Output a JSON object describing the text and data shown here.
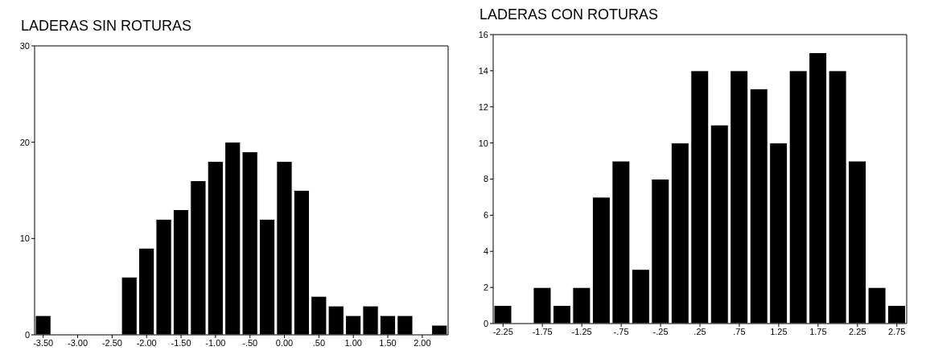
{
  "chart_data": [
    {
      "type": "histogram",
      "title": "LADERAS SIN ROTURAS",
      "color": "#000000",
      "bins": [
        -3.625,
        -3.375,
        -3.125,
        -2.875,
        -2.625,
        -2.375,
        -2.125,
        -1.875,
        -1.625,
        -1.375,
        -1.125,
        -0.875,
        -0.625,
        -0.375,
        -0.125,
        0.125,
        0.375,
        0.625,
        0.875,
        1.125,
        1.375,
        1.625,
        1.875,
        2.125,
        2.375
      ],
      "values": [
        2,
        0,
        0,
        0,
        0,
        6,
        9,
        12,
        13,
        16,
        18,
        20,
        19,
        12,
        18,
        15,
        4,
        3,
        2,
        3,
        2,
        2,
        0,
        1
      ],
      "xlim": [
        -3.625,
        2.375
      ],
      "xticks": [
        {
          "value": -3.5,
          "label": "-3.50"
        },
        {
          "value": -3,
          "label": "-3.00"
        },
        {
          "value": -2.5,
          "label": "-2.50"
        },
        {
          "value": -2,
          "label": "-2.00"
        },
        {
          "value": -1.5,
          "label": "-1.50"
        },
        {
          "value": -1,
          "label": "-1.00"
        },
        {
          "value": -0.5,
          "label": "-.50"
        },
        {
          "value": 0,
          "label": "0.00"
        },
        {
          "value": 0.5,
          "label": ".50"
        },
        {
          "value": 1,
          "label": "1.00"
        },
        {
          "value": 1.5,
          "label": "1.50"
        },
        {
          "value": 2,
          "label": "2.00"
        }
      ],
      "ylim": [
        0,
        30
      ],
      "yticks": [
        0,
        10,
        20,
        30
      ]
    },
    {
      "type": "histogram",
      "title": "LADERAS CON ROTURAS",
      "color": "#000000",
      "bins": [
        -2.375,
        -2.125,
        -1.875,
        -1.625,
        -1.375,
        -1.125,
        -0.875,
        -0.625,
        -0.375,
        -0.125,
        0.125,
        0.375,
        0.625,
        0.875,
        1.125,
        1.375,
        1.625,
        1.875,
        2.125,
        2.375,
        2.625,
        2.875
      ],
      "values": [
        1,
        0,
        2,
        1,
        2,
        7,
        9,
        3,
        8,
        10,
        14,
        11,
        14,
        13,
        10,
        14,
        15,
        14,
        9,
        2,
        1
      ],
      "xlim": [
        -2.375,
        2.875
      ],
      "xticks": [
        {
          "value": -2.25,
          "label": "-2.25"
        },
        {
          "value": -1.75,
          "label": "-1.75"
        },
        {
          "value": -1.25,
          "label": "-1.25"
        },
        {
          "value": -0.75,
          "label": "-.75"
        },
        {
          "value": -0.25,
          "label": "-.25"
        },
        {
          "value": 0.25,
          "label": ".25"
        },
        {
          "value": 0.75,
          "label": ".75"
        },
        {
          "value": 1.25,
          "label": "1.25"
        },
        {
          "value": 1.75,
          "label": "1.75"
        },
        {
          "value": 2.25,
          "label": "2.25"
        },
        {
          "value": 2.75,
          "label": "2.75"
        }
      ],
      "ylim": [
        0,
        16
      ],
      "yticks": [
        0,
        2,
        4,
        6,
        8,
        10,
        12,
        14,
        16
      ]
    }
  ]
}
